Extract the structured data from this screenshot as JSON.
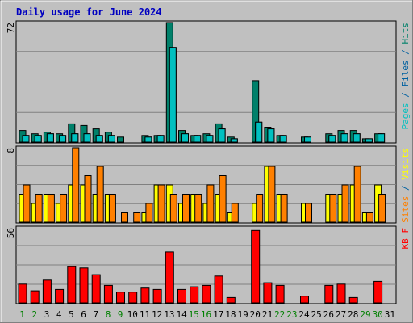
{
  "chart_data": {
    "type": "bar",
    "title": "Daily usage for June 2024",
    "colors": {
      "background": "#c0c0c0",
      "title": "#0000c0",
      "pages": "#00c0c0",
      "files": "#0060a0",
      "hits": "#00806a",
      "sites": "#ff8000",
      "visits": "#ffff00",
      "kbf": "#ff0000",
      "weekend_label": "#008000",
      "weekday_label": "#000000"
    },
    "categories": [
      "1",
      "2",
      "3",
      "4",
      "5",
      "6",
      "7",
      "8",
      "9",
      "10",
      "11",
      "12",
      "13",
      "14",
      "15",
      "16",
      "17",
      "18",
      "19",
      "20",
      "21",
      "22",
      "23",
      "24",
      "25",
      "26",
      "27",
      "28",
      "29",
      "30",
      "31"
    ],
    "weekend_days": [
      "1",
      "2",
      "8",
      "9",
      "15",
      "16",
      "22",
      "23",
      "29",
      "30"
    ],
    "panels": [
      {
        "id": "top",
        "ymax_label": "72",
        "ylim": [
          0,
          72
        ],
        "axis_label": {
          "parts": [
            {
              "text": "Pages",
              "color": "#00c0c0"
            },
            {
              "text": " / ",
              "color": "#0060a0"
            },
            {
              "text": "Files",
              "color": "#0060a0"
            },
            {
              "text": " / ",
              "color": "#0060a0"
            },
            {
              "text": "Hits",
              "color": "#00806a"
            }
          ]
        },
        "series": [
          {
            "name": "Hits",
            "color": "#00806a",
            "values": [
              7,
              5,
              6,
              5,
              11,
              10,
              8,
              6,
              3,
              0,
              4,
              4,
              72,
              7,
              4,
              5,
              11,
              3,
              0,
              37,
              9,
              4,
              0,
              3,
              0,
              5,
              7,
              7,
              2,
              5,
              0
            ]
          },
          {
            "name": "Files",
            "color": "#0060a0",
            "values": [
              4,
              4,
              5,
              4,
              5,
              5,
              4,
              4,
              0,
              0,
              3,
              4,
              57,
              5,
              4,
              4,
              8,
              2,
              0,
              12,
              8,
              4,
              0,
              3,
              0,
              4,
              5,
              5,
              2,
              5,
              0
            ]
          },
          {
            "name": "Pages",
            "color": "#00c0c0",
            "values": [
              4,
              4,
              5,
              4,
              5,
              5,
              4,
              4,
              0,
              0,
              3,
              4,
              57,
              5,
              4,
              4,
              8,
              2,
              0,
              12,
              8,
              4,
              0,
              3,
              0,
              4,
              5,
              5,
              2,
              5,
              0
            ]
          }
        ]
      },
      {
        "id": "middle",
        "ymax_label": "8",
        "ylim": [
          0,
          8
        ],
        "axis_label": {
          "parts": [
            {
              "text": "Sites",
              "color": "#ff8000"
            },
            {
              "text": " / ",
              "color": "#0060a0"
            },
            {
              "text": "Visits",
              "color": "#ffff00"
            }
          ]
        },
        "series": [
          {
            "name": "Visits",
            "color": "#ffff00",
            "values": [
              3,
              2,
              3,
              2,
              4,
              4,
              3,
              3,
              0,
              0,
              1,
              4,
              4,
              2,
              3,
              2,
              3,
              1,
              0,
              2,
              6,
              3,
              0,
              2,
              0,
              3,
              3,
              4,
              1,
              4,
              0
            ]
          },
          {
            "name": "Sites",
            "color": "#ff8000",
            "values": [
              4,
              3,
              3,
              3,
              8,
              5,
              6,
              3,
              1,
              1,
              2,
              4,
              3,
              3,
              3,
              4,
              5,
              2,
              0,
              3,
              6,
              3,
              0,
              2,
              0,
              3,
              4,
              6,
              1,
              3,
              0
            ]
          }
        ]
      },
      {
        "id": "bottom",
        "ymax_label": "56",
        "ylim": [
          0,
          56
        ],
        "axis_label": {
          "parts": [
            {
              "text": "KB F",
              "color": "#ff0000"
            }
          ]
        },
        "series": [
          {
            "name": "KB F",
            "color": "#ff0000",
            "values": [
              14,
              9,
              17,
              10,
              27,
              26,
              21,
              13,
              8,
              8,
              11,
              10,
              38,
              10,
              12,
              13,
              20,
              4,
              0,
              54,
              15,
              13,
              0,
              5,
              0,
              13,
              14,
              4,
              0,
              16,
              0
            ]
          }
        ]
      }
    ]
  }
}
